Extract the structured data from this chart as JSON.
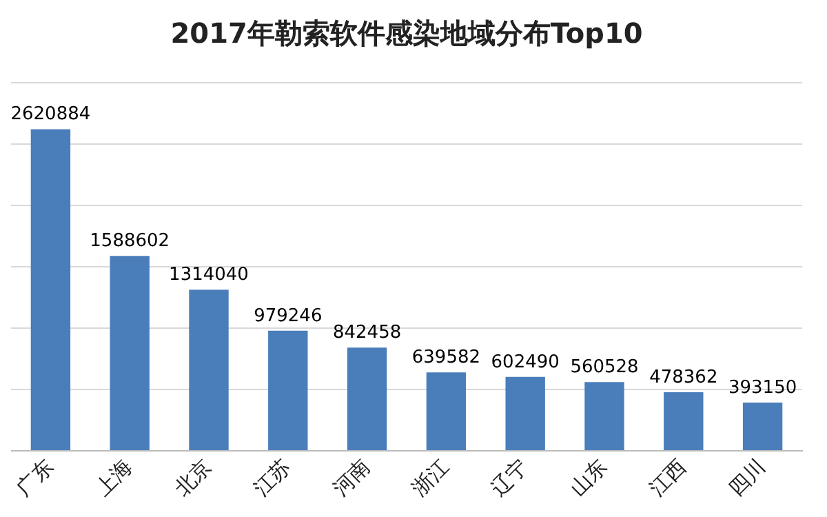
{
  "chart_data": {
    "type": "bar",
    "title": "2017年勒索软件感染地域分布Top10",
    "categories": [
      "广东",
      "上海",
      "北京",
      "江苏",
      "河南",
      "浙江",
      "辽宁",
      "山东",
      "江西",
      "四川"
    ],
    "values": [
      2620884,
      1588602,
      1314040,
      979246,
      842458,
      639582,
      602490,
      560528,
      478362,
      393150
    ],
    "color": "#4a7ebb",
    "data_labels": true,
    "grid": "y",
    "tick_labels": "x",
    "ylim": [
      0,
      3000000
    ],
    "yticks": [
      {
        "value": 0,
        "label": null
      },
      {
        "value": 500000,
        "label": null
      },
      {
        "value": 1000000,
        "label": null
      },
      {
        "value": 1500000,
        "label": null
      },
      {
        "value": 2000000,
        "label": null
      },
      {
        "value": 2500000,
        "label": null
      },
      {
        "value": 3000000,
        "label": null
      }
    ]
  }
}
